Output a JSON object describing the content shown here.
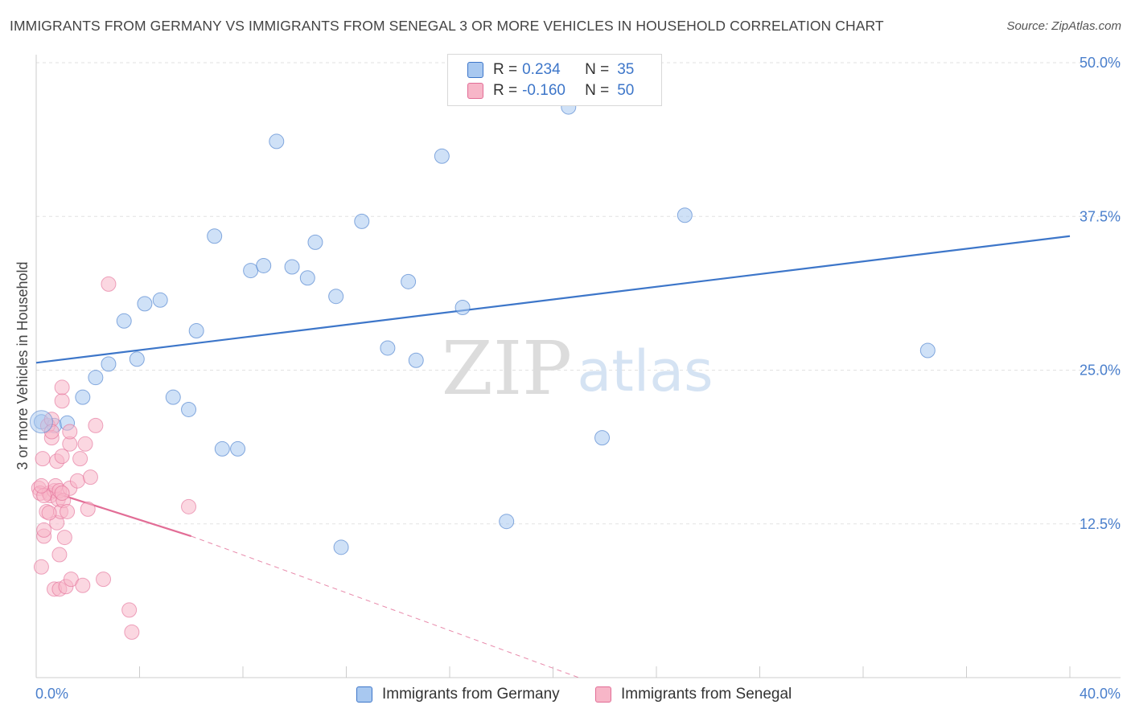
{
  "title": "IMMIGRANTS FROM GERMANY VS IMMIGRANTS FROM SENEGAL 3 OR MORE VEHICLES IN HOUSEHOLD CORRELATION CHART",
  "source": "Source: ZipAtlas.com",
  "watermark": {
    "zip": "ZIP",
    "atlas": "atlas"
  },
  "legend": {
    "r_label": "R =",
    "n_label": "N =",
    "germany": {
      "r": "0.234",
      "n": "35",
      "color": "#a8c8f0"
    },
    "senegal": {
      "r": "-0.160",
      "n": "50",
      "color": "#f7b6c8"
    }
  },
  "bottom_legend": {
    "germany": "Immigrants from Germany",
    "senegal": "Immigrants from Senegal"
  },
  "chart_data": {
    "type": "scatter",
    "title": "IMMIGRANTS FROM GERMANY VS IMMIGRANTS FROM SENEGAL 3 OR MORE VEHICLES IN HOUSEHOLD CORRELATION CHART",
    "xlabel": "",
    "ylabel": "3 or more Vehicles in Household",
    "xlim": [
      0,
      40
    ],
    "ylim": [
      0,
      50
    ],
    "x_tick_labels": [
      "0.0%",
      "40.0%"
    ],
    "y_tick_values": [
      12.5,
      25.0,
      37.5,
      50.0
    ],
    "y_tick_labels": [
      "12.5%",
      "25.0%",
      "37.5%",
      "50.0%"
    ],
    "grid": true,
    "series": [
      {
        "name": "Immigrants from Germany",
        "color": "#3d76c9",
        "fill": "#a8c8f0",
        "trend": {
          "x": [
            0,
            40
          ],
          "y": [
            25.6,
            35.9
          ],
          "style": "solid"
        },
        "points": [
          [
            0.2,
            20.8
          ],
          [
            0.7,
            20.5
          ],
          [
            1.2,
            20.7
          ],
          [
            1.8,
            22.8
          ],
          [
            2.3,
            24.4
          ],
          [
            2.8,
            25.5
          ],
          [
            3.4,
            29.0
          ],
          [
            3.9,
            25.9
          ],
          [
            4.2,
            30.4
          ],
          [
            4.8,
            30.7
          ],
          [
            5.3,
            22.8
          ],
          [
            5.9,
            21.8
          ],
          [
            6.2,
            28.2
          ],
          [
            6.9,
            35.9
          ],
          [
            7.2,
            18.6
          ],
          [
            7.8,
            18.6
          ],
          [
            8.3,
            33.1
          ],
          [
            8.8,
            33.5
          ],
          [
            9.3,
            43.6
          ],
          [
            9.9,
            33.4
          ],
          [
            10.5,
            32.5
          ],
          [
            10.8,
            35.4
          ],
          [
            11.6,
            31.0
          ],
          [
            11.8,
            10.6
          ],
          [
            12.6,
            37.1
          ],
          [
            13.6,
            26.8
          ],
          [
            14.4,
            32.2
          ],
          [
            14.7,
            25.8
          ],
          [
            15.7,
            42.4
          ],
          [
            16.5,
            30.1
          ],
          [
            18.2,
            12.7
          ],
          [
            20.6,
            46.4
          ],
          [
            21.9,
            19.5
          ],
          [
            25.1,
            37.6
          ],
          [
            34.5,
            26.6
          ]
        ]
      },
      {
        "name": "Immigrants from Senegal",
        "color": "#e26d96",
        "fill": "#f7b6c8",
        "trend": {
          "x": [
            0,
            6.0
          ],
          "y": [
            15.5,
            11.5
          ],
          "style": "solid",
          "extension": {
            "x": [
              6.0,
              21.0
            ],
            "y": [
              11.5,
              0.0
            ],
            "style": "dashed"
          }
        },
        "points": [
          [
            0.1,
            15.4
          ],
          [
            0.15,
            15.0
          ],
          [
            0.2,
            9.0
          ],
          [
            0.25,
            17.8
          ],
          [
            0.3,
            11.5
          ],
          [
            0.3,
            12.0
          ],
          [
            0.4,
            13.5
          ],
          [
            0.45,
            20.5
          ],
          [
            0.5,
            15.0
          ],
          [
            0.55,
            14.8
          ],
          [
            0.6,
            21.0
          ],
          [
            0.6,
            19.5
          ],
          [
            0.7,
            15.2
          ],
          [
            0.7,
            7.2
          ],
          [
            0.75,
            15.6
          ],
          [
            0.8,
            12.6
          ],
          [
            0.8,
            17.6
          ],
          [
            0.85,
            14.5
          ],
          [
            0.9,
            15.2
          ],
          [
            0.9,
            10.0
          ],
          [
            0.9,
            7.2
          ],
          [
            0.95,
            13.5
          ],
          [
            1.0,
            22.5
          ],
          [
            1.0,
            23.6
          ],
          [
            1.05,
            14.4
          ],
          [
            1.0,
            18.0
          ],
          [
            1.1,
            11.4
          ],
          [
            1.15,
            7.4
          ],
          [
            1.2,
            13.5
          ],
          [
            1.3,
            19.0
          ],
          [
            1.3,
            15.4
          ],
          [
            1.35,
            8.0
          ],
          [
            1.3,
            20.0
          ],
          [
            1.6,
            16.0
          ],
          [
            1.7,
            17.8
          ],
          [
            1.8,
            7.5
          ],
          [
            1.9,
            19.0
          ],
          [
            2.0,
            13.7
          ],
          [
            2.1,
            16.3
          ],
          [
            2.3,
            20.5
          ],
          [
            2.6,
            8.0
          ],
          [
            2.8,
            32.0
          ],
          [
            3.6,
            5.5
          ],
          [
            3.7,
            3.7
          ],
          [
            5.9,
            13.9
          ],
          [
            0.3,
            14.8
          ],
          [
            0.5,
            13.4
          ],
          [
            0.6,
            20.0
          ],
          [
            1.0,
            15.0
          ],
          [
            0.2,
            15.6
          ]
        ]
      }
    ]
  }
}
